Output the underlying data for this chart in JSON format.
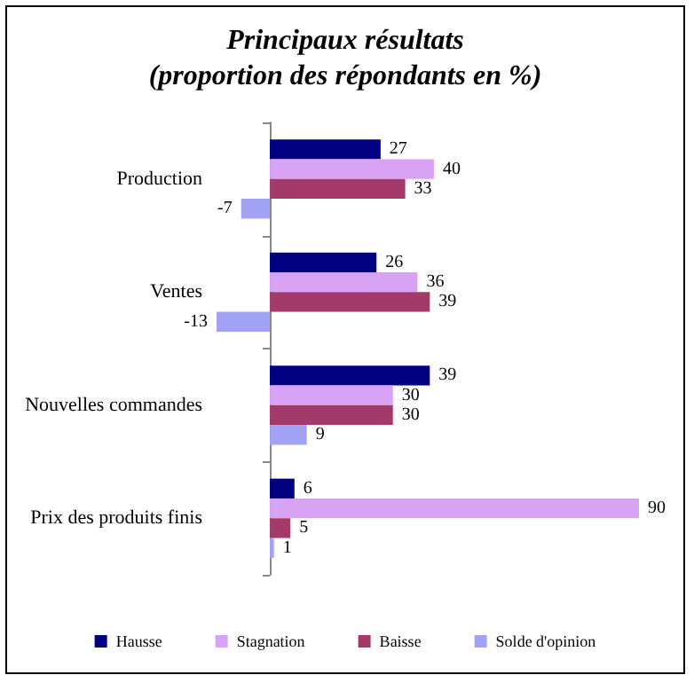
{
  "chart_data": {
    "type": "bar",
    "orientation": "horizontal",
    "title": "Principaux résultats\n(proportion des répondants en %)",
    "categories": [
      "Production",
      "Ventes",
      "Nouvelles commandes",
      "Prix des produits finis"
    ],
    "series": [
      {
        "name": "Hausse",
        "color": "#000080",
        "values": [
          27,
          26,
          39,
          6
        ]
      },
      {
        "name": "Stagnation",
        "color": "#d9a3f5",
        "values": [
          40,
          36,
          30,
          90
        ]
      },
      {
        "name": "Baisse",
        "color": "#a33a6a",
        "values": [
          33,
          39,
          30,
          5
        ]
      },
      {
        "name": "Solde d'opinion",
        "color": "#a3a3f5",
        "values": [
          -7,
          -13,
          9,
          1
        ]
      }
    ],
    "data_labels": true,
    "legend": "bottom"
  }
}
